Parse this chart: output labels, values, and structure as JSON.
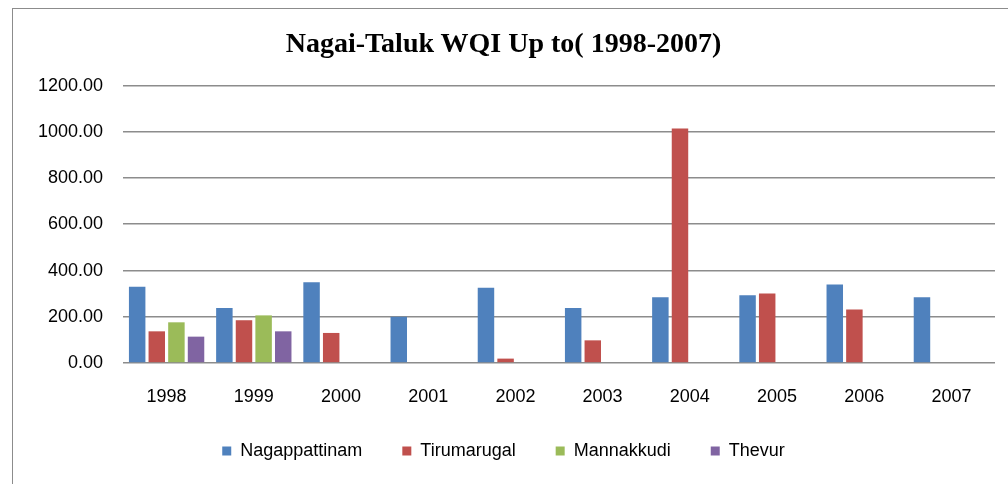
{
  "chart_data": {
    "type": "bar",
    "title": "Nagai-Taluk WQI Up to( 1998-2007)",
    "categories": [
      "1998",
      "1999",
      "2000",
      "2001",
      "2002",
      "2003",
      "2004",
      "2005",
      "2006",
      "2007"
    ],
    "series": [
      {
        "name": "Nagappattinam",
        "color": "#4f81bd",
        "values": [
          330,
          238,
          349,
          200,
          325,
          238,
          284,
          293,
          340,
          284
        ]
      },
      {
        "name": "Tirumarugal",
        "color": "#c0504d",
        "values": [
          137,
          185,
          130,
          null,
          19,
          98,
          1014,
          301,
          231,
          null
        ]
      },
      {
        "name": "Mannakkudi",
        "color": "#9bbb59",
        "values": [
          176,
          206,
          null,
          null,
          null,
          null,
          null,
          null,
          null,
          null
        ]
      },
      {
        "name": "Thevur",
        "color": "#8064a2",
        "values": [
          114,
          137,
          null,
          null,
          null,
          null,
          null,
          null,
          null,
          null
        ]
      }
    ],
    "ylim": [
      0,
      1200
    ],
    "yticks": [
      {
        "value": 0,
        "label": "0.00"
      },
      {
        "value": 200,
        "label": "200.00"
      },
      {
        "value": 400,
        "label": "400.00"
      },
      {
        "value": 600,
        "label": "600.00"
      },
      {
        "value": 800,
        "label": "800.00"
      },
      {
        "value": 1000,
        "label": "1000.00"
      },
      {
        "value": 1200,
        "label": "1200.00"
      }
    ],
    "grid": "y",
    "legend": "bottom"
  }
}
